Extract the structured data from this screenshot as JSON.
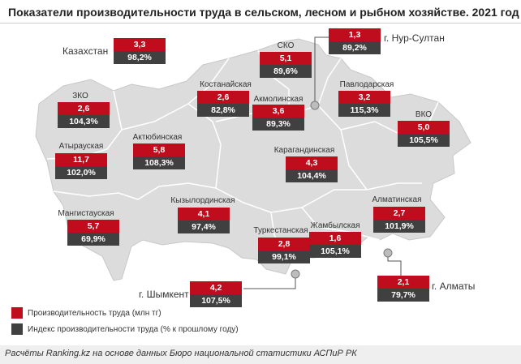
{
  "title": "Показатели производительности труда в сельском, лесном и рыбном хозяйстве. 2021 год",
  "legend": {
    "productivity": "Производительность труда (млн тг)",
    "index": "Индекс производительности труда (% к прошлому году)"
  },
  "colors": {
    "productivity": "#c00d1e",
    "index": "#404040",
    "land": "#dcdcdc",
    "border": "#ffffff"
  },
  "regions": {
    "kazakhstan": {
      "name": "Казахстан",
      "productivity": "3,3",
      "index": "98,2%"
    },
    "sko": {
      "name": "СКО",
      "productivity": "5,1",
      "index": "89,6%"
    },
    "nursultan": {
      "name": "г. Нур-Султан",
      "productivity": "1,3",
      "index": "89,2%"
    },
    "kostanay": {
      "name": "Костанайская",
      "productivity": "2,6",
      "index": "82,8%"
    },
    "akmola": {
      "name": "Акмолинская",
      "productivity": "3,6",
      "index": "89,3%"
    },
    "pavlodar": {
      "name": "Павлодарская",
      "productivity": "3,2",
      "index": "115,3%"
    },
    "zko": {
      "name": "ЗКО",
      "productivity": "2,6",
      "index": "104,3%"
    },
    "vko": {
      "name": "ВКО",
      "productivity": "5,0",
      "index": "105,5%"
    },
    "atyrau": {
      "name": "Атырауская",
      "productivity": "11,7",
      "index": "102,0%"
    },
    "aktobe": {
      "name": "Актюбинская",
      "productivity": "5,8",
      "index": "108,3%"
    },
    "karaganda": {
      "name": "Карагандинская",
      "productivity": "4,3",
      "index": "104,4%"
    },
    "mangystau": {
      "name": "Мангистауская",
      "productivity": "5,7",
      "index": "69,9%"
    },
    "kyzylorda": {
      "name": "Кызылординская",
      "productivity": "4,1",
      "index": "97,4%"
    },
    "almaty_reg": {
      "name": "Алматинская",
      "productivity": "2,7",
      "index": "101,9%"
    },
    "turkestan": {
      "name": "Туркестанская",
      "productivity": "2,8",
      "index": "99,1%"
    },
    "zhambyl": {
      "name": "Жамбылская",
      "productivity": "1,6",
      "index": "105,1%"
    },
    "shymkent": {
      "name": "г. Шымкент",
      "productivity": "4,2",
      "index": "107,5%"
    },
    "almaty_city": {
      "name": "г. Алматы",
      "productivity": "2,1",
      "index": "79,7%"
    }
  },
  "footer": "Расчёты Ranking.kz на основе данных Бюро национальной статистики АСПиР РК"
}
